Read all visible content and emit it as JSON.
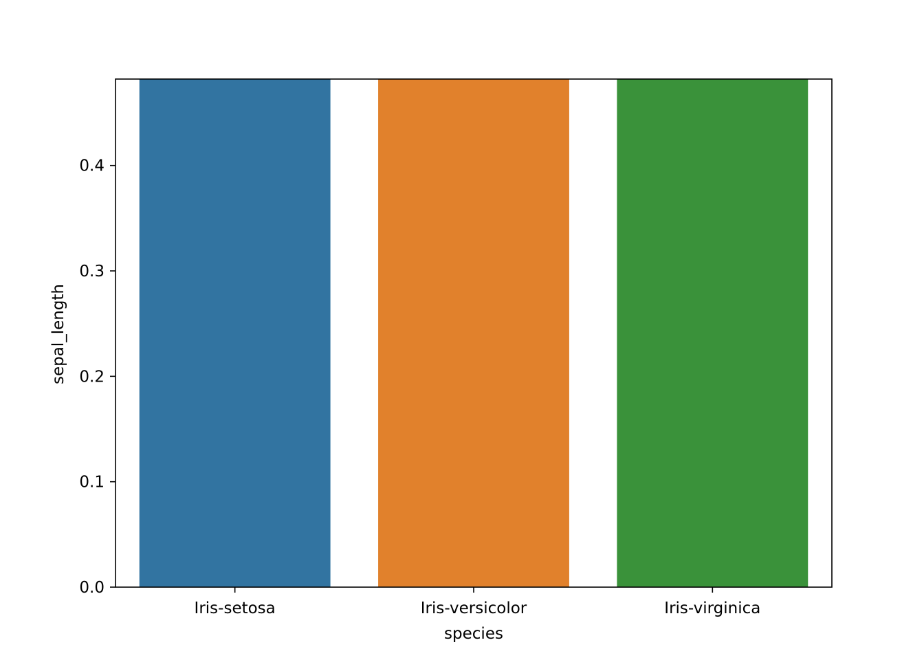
{
  "chart_data": {
    "type": "bar",
    "categories": [
      "Iris-setosa",
      "Iris-versicolor",
      "Iris-virginica"
    ],
    "values": [
      0.482,
      0.482,
      0.482
    ],
    "colors": [
      "#3274a1",
      "#e1812c",
      "#3a923a"
    ],
    "title": "",
    "xlabel": "species",
    "ylabel": "sepal_length",
    "ylim": [
      0,
      0.482
    ],
    "yticks": [
      "0.0",
      "0.1",
      "0.2",
      "0.3",
      "0.4"
    ],
    "grid": false
  }
}
